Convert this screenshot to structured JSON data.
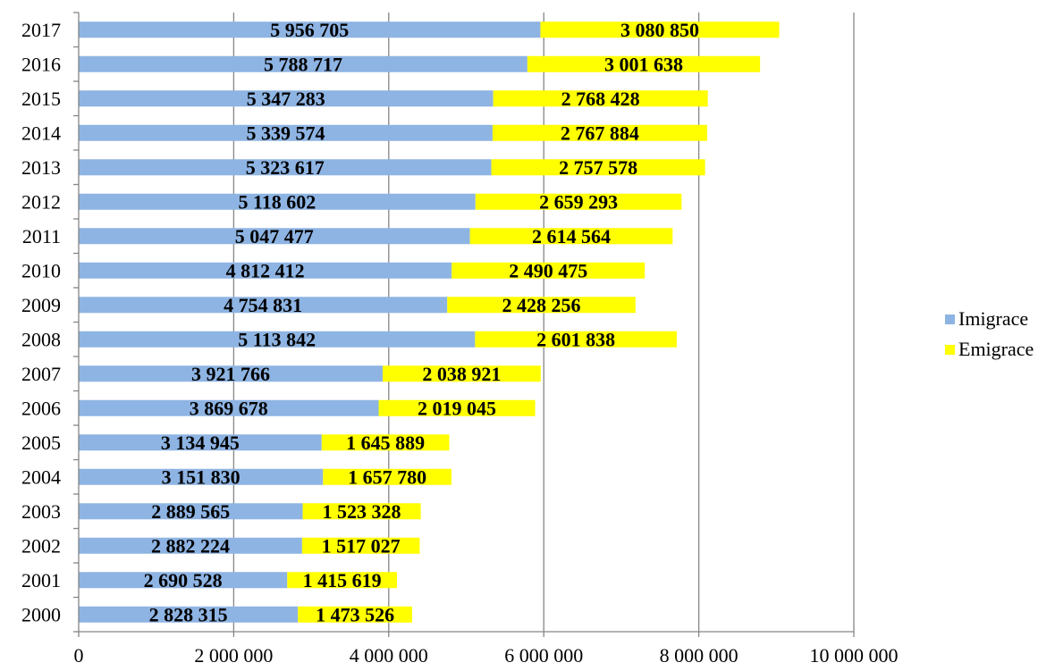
{
  "chart_data": {
    "type": "bar",
    "orientation": "horizontal",
    "stacked": true,
    "categories": [
      "2000",
      "2001",
      "2002",
      "2003",
      "2004",
      "2005",
      "2006",
      "2007",
      "2008",
      "2009",
      "2010",
      "2011",
      "2012",
      "2013",
      "2014",
      "2015",
      "2016",
      "2017"
    ],
    "series": [
      {
        "name": "Imigrace",
        "color": "#8EB4E3",
        "values": [
          2828315,
          2690528,
          2882224,
          2889565,
          3151830,
          3134945,
          3869678,
          3921766,
          5113842,
          4754831,
          4812412,
          5047477,
          5118602,
          5323617,
          5339574,
          5347283,
          5788717,
          5956705
        ],
        "labels": [
          "2 828 315",
          "2 690 528",
          "2 882 224",
          "2 889 565",
          "3 151 830",
          "3 134 945",
          "3 869 678",
          "3 921 766",
          "5 113 842",
          "4 754 831",
          "4 812 412",
          "5 047 477",
          "5 118 602",
          "5 323 617",
          "5 339 574",
          "5 347 283",
          "5 788 717",
          "5 956 705"
        ]
      },
      {
        "name": "Emigrace",
        "color": "#FFFF00",
        "values": [
          1473526,
          1415619,
          1517027,
          1523328,
          1657780,
          1645889,
          2019045,
          2038921,
          2601838,
          2428256,
          2490475,
          2614564,
          2659293,
          2757578,
          2767884,
          2768428,
          3001638,
          3080850
        ],
        "labels": [
          "1 473 526",
          "1 415 619",
          "1 517 027",
          "1 523 328",
          "1 657 780",
          "1 645 889",
          "2 019 045",
          "2 038 921",
          "2 601 838",
          "2 428 256",
          "2 490 475",
          "2 614 564",
          "2 659 293",
          "2 757 578",
          "2 767 884",
          "2 768 428",
          "3 001 638",
          "3 080 850"
        ]
      }
    ],
    "xlim": [
      0,
      10000000
    ],
    "x_ticks": [
      0,
      2000000,
      4000000,
      6000000,
      8000000,
      10000000
    ],
    "x_tick_labels": [
      "0",
      "2 000 000",
      "4 000 000",
      "6 000 000",
      "8 000 000",
      "10 000 000"
    ],
    "grid": true,
    "legend_position": "right",
    "title": "",
    "xlabel": "",
    "ylabel": ""
  }
}
